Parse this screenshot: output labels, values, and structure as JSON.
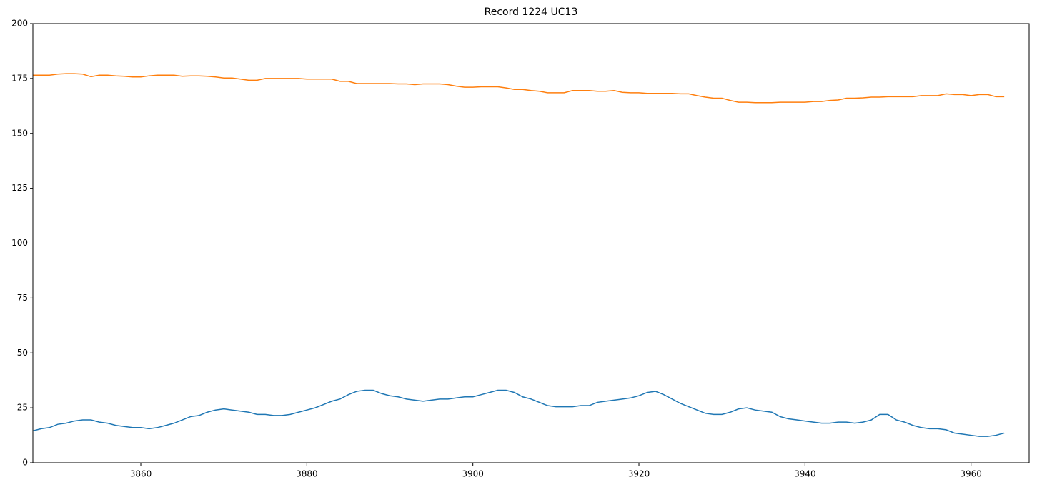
{
  "chart_data": {
    "type": "line",
    "title": "Record 1224 UC13",
    "x": [
      3847,
      3848,
      3849,
      3850,
      3851,
      3852,
      3853,
      3854,
      3855,
      3856,
      3857,
      3858,
      3859,
      3860,
      3861,
      3862,
      3863,
      3864,
      3865,
      3866,
      3867,
      3868,
      3869,
      3870,
      3871,
      3872,
      3873,
      3874,
      3875,
      3876,
      3877,
      3878,
      3879,
      3880,
      3881,
      3882,
      3883,
      3884,
      3885,
      3886,
      3887,
      3888,
      3889,
      3890,
      3891,
      3892,
      3893,
      3894,
      3895,
      3896,
      3897,
      3898,
      3899,
      3900,
      3901,
      3902,
      3903,
      3904,
      3905,
      3906,
      3907,
      3908,
      3909,
      3910,
      3911,
      3912,
      3913,
      3914,
      3915,
      3916,
      3917,
      3918,
      3919,
      3920,
      3921,
      3922,
      3923,
      3924,
      3925,
      3926,
      3927,
      3928,
      3929,
      3930,
      3931,
      3932,
      3933,
      3934,
      3935,
      3936,
      3937,
      3938,
      3939,
      3940,
      3941,
      3942,
      3943,
      3944,
      3945,
      3946,
      3947,
      3948,
      3949,
      3950,
      3951,
      3952,
      3953,
      3954,
      3955,
      3956,
      3957,
      3958,
      3959,
      3960,
      3961,
      3962,
      3963,
      3964
    ],
    "series": [
      {
        "color": "#1f77b4",
        "values": [
          14.5,
          15.5,
          16,
          17.5,
          18,
          19,
          19.5,
          19.5,
          18.5,
          18,
          17,
          16.5,
          16,
          16,
          15.5,
          16,
          17,
          18,
          19.5,
          21,
          21.5,
          23,
          24,
          24.5,
          24,
          23.5,
          23,
          22,
          22,
          21.5,
          21.5,
          22,
          23,
          24,
          25,
          26.5,
          28,
          29,
          31,
          32.5,
          33,
          33,
          31.5,
          30.5,
          30,
          29,
          28.5,
          28,
          28.5,
          29,
          29,
          29.5,
          30,
          30,
          31,
          32,
          33,
          33,
          32,
          30,
          29,
          27.5,
          26,
          25.5,
          25.5,
          25.5,
          26,
          26,
          27.5,
          28,
          28.5,
          29,
          29.5,
          30.5,
          32,
          32.5,
          31,
          29,
          27,
          25.5,
          24,
          22.5,
          22,
          22,
          23,
          24.5,
          25,
          24,
          23.5,
          23,
          21,
          20,
          19.5,
          19,
          18.5,
          18,
          18,
          18.5,
          18.5,
          18,
          18.5,
          19.5,
          22,
          22,
          19.5,
          18.5,
          17,
          16,
          15.5,
          15.5,
          15,
          13.5,
          13,
          12.5,
          12,
          12,
          12.5,
          13.5
        ]
      },
      {
        "color": "#ff7f0e",
        "values": [
          176.5,
          176.5,
          176.5,
          177,
          177.2,
          177.2,
          177,
          175.8,
          176.5,
          176.5,
          176.2,
          176,
          175.7,
          175.7,
          176.2,
          176.5,
          176.5,
          176.5,
          176,
          176.2,
          176.2,
          176,
          175.7,
          175.2,
          175.2,
          174.7,
          174.2,
          174.2,
          175,
          175,
          175,
          175,
          175,
          174.7,
          174.7,
          174.7,
          174.7,
          173.7,
          173.7,
          172.7,
          172.7,
          172.7,
          172.7,
          172.7,
          172.5,
          172.5,
          172.2,
          172.5,
          172.5,
          172.5,
          172.2,
          171.5,
          171,
          171,
          171.2,
          171.2,
          171.2,
          170.7,
          170,
          170,
          169.5,
          169.2,
          168.5,
          168.5,
          168.5,
          169.5,
          169.5,
          169.5,
          169.2,
          169.2,
          169.5,
          168.7,
          168.5,
          168.5,
          168.2,
          168.2,
          168.2,
          168.2,
          168,
          168,
          167.2,
          166.5,
          166,
          166,
          165,
          164.2,
          164.2,
          164,
          164,
          164,
          164.2,
          164.2,
          164.2,
          164.2,
          164.5,
          164.5,
          165,
          165.2,
          166,
          166,
          166.2,
          166.5,
          166.5,
          166.7,
          166.7,
          166.7,
          166.7,
          167.2,
          167.2,
          167.2,
          168,
          167.7,
          167.7,
          167.2,
          167.7,
          167.7,
          166.7,
          166.7
        ]
      }
    ],
    "xlim": [
      3847,
      3967
    ],
    "xticks": [
      3860,
      3880,
      3900,
      3920,
      3940,
      3960
    ],
    "ylim": [
      0,
      200
    ],
    "yticks": [
      0,
      25,
      50,
      75,
      100,
      125,
      150,
      175,
      200
    ],
    "grid": false
  }
}
